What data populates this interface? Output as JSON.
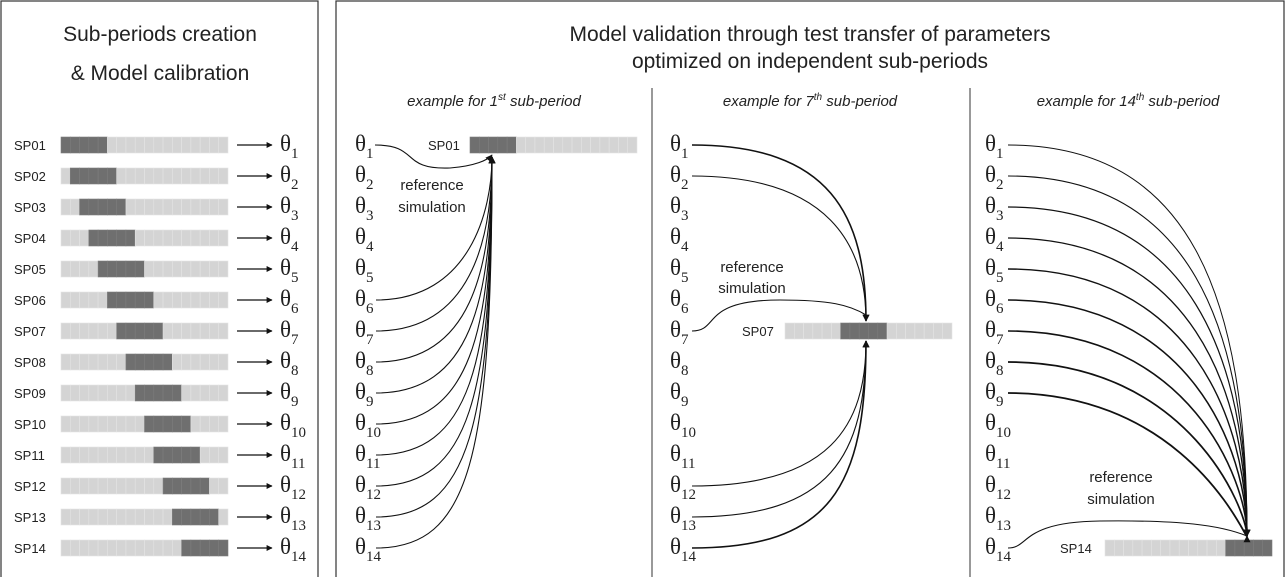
{
  "left": {
    "title": [
      "Sub-periods creation",
      "& Model calibration"
    ],
    "rows": [
      {
        "label": "SP01",
        "symbol": "θ",
        "sub": "1"
      },
      {
        "label": "SP02",
        "symbol": "θ",
        "sub": "2"
      },
      {
        "label": "SP03",
        "symbol": "θ",
        "sub": "3"
      },
      {
        "label": "SP04",
        "symbol": "θ",
        "sub": "4"
      },
      {
        "label": "SP05",
        "symbol": "θ",
        "sub": "5"
      },
      {
        "label": "SP06",
        "symbol": "θ",
        "sub": "6"
      },
      {
        "label": "SP07",
        "symbol": "θ",
        "sub": "7"
      },
      {
        "label": "SP08",
        "symbol": "θ",
        "sub": "8"
      },
      {
        "label": "SP09",
        "symbol": "θ",
        "sub": "9"
      },
      {
        "label": "SP10",
        "symbol": "θ",
        "sub": "10"
      },
      {
        "label": "SP11",
        "symbol": "θ",
        "sub": "11"
      },
      {
        "label": "SP12",
        "symbol": "θ",
        "sub": "12"
      },
      {
        "label": "SP13",
        "symbol": "θ",
        "sub": "13"
      },
      {
        "label": "SP14",
        "symbol": "θ",
        "sub": "14"
      }
    ]
  },
  "right": {
    "title": [
      "Model validation through test transfer of parameters",
      "optimized on independent sub-periods"
    ],
    "examples": [
      {
        "heading": {
          "text": "example for 1",
          "sup": "st",
          "rest": " sub-period"
        },
        "reference": [
          "reference",
          "simulation"
        ],
        "sp": "SP01"
      },
      {
        "heading": {
          "text": "example for 7",
          "sup": "th",
          "rest": " sub-period"
        },
        "reference": [
          "reference",
          "simulation"
        ],
        "sp": "SP07"
      },
      {
        "heading": {
          "text": "example for 14",
          "sup": "th",
          "rest": " sub-period"
        },
        "reference": [
          "reference",
          "simulation"
        ],
        "sp": "SP14"
      }
    ]
  }
}
